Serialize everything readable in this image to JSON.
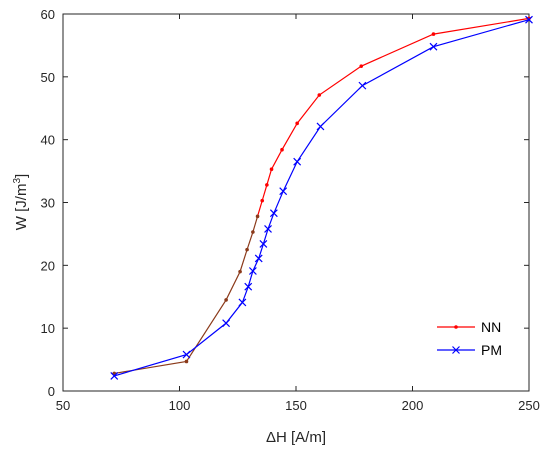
{
  "chart_data": {
    "type": "line",
    "xlabel": "ΔH [A/m]",
    "ylabel": {
      "base": "W [J/m",
      "sup": "3",
      "end": "]"
    },
    "xlim": [
      50,
      250
    ],
    "ylim": [
      0,
      60
    ],
    "xticks": [
      50,
      100,
      150,
      200,
      250
    ],
    "yticks": [
      0,
      10,
      20,
      30,
      40,
      50,
      60
    ],
    "grid": false,
    "legend_position": "bottom-right",
    "series": [
      {
        "name": "NN",
        "color": "#ff0000",
        "brown_color": "#8b3a1a",
        "brown_until_index": 6,
        "marker": "dot",
        "x": [
          72,
          103,
          120,
          126,
          129,
          131.5,
          133.5,
          135.5,
          137.5,
          139.5,
          144,
          150.5,
          160,
          178,
          209,
          250
        ],
        "y": [
          2.8,
          4.7,
          14.5,
          19,
          22.5,
          25.3,
          27.8,
          30.3,
          32.8,
          35.3,
          38.4,
          42.6,
          47.1,
          51.7,
          56.8,
          59.3
        ]
      },
      {
        "name": "PM",
        "color": "#0000ff",
        "marker": "x",
        "x": [
          72,
          103,
          120,
          127,
          129.5,
          131.5,
          134,
          136,
          138,
          140.5,
          144.5,
          150.5,
          160.5,
          178.5,
          209,
          250
        ],
        "y": [
          2.4,
          5.8,
          10.8,
          14.1,
          16.6,
          19.1,
          21.1,
          23.4,
          25.8,
          28.3,
          31.8,
          36.5,
          42.1,
          48.6,
          54.8,
          59.1
        ]
      }
    ]
  }
}
